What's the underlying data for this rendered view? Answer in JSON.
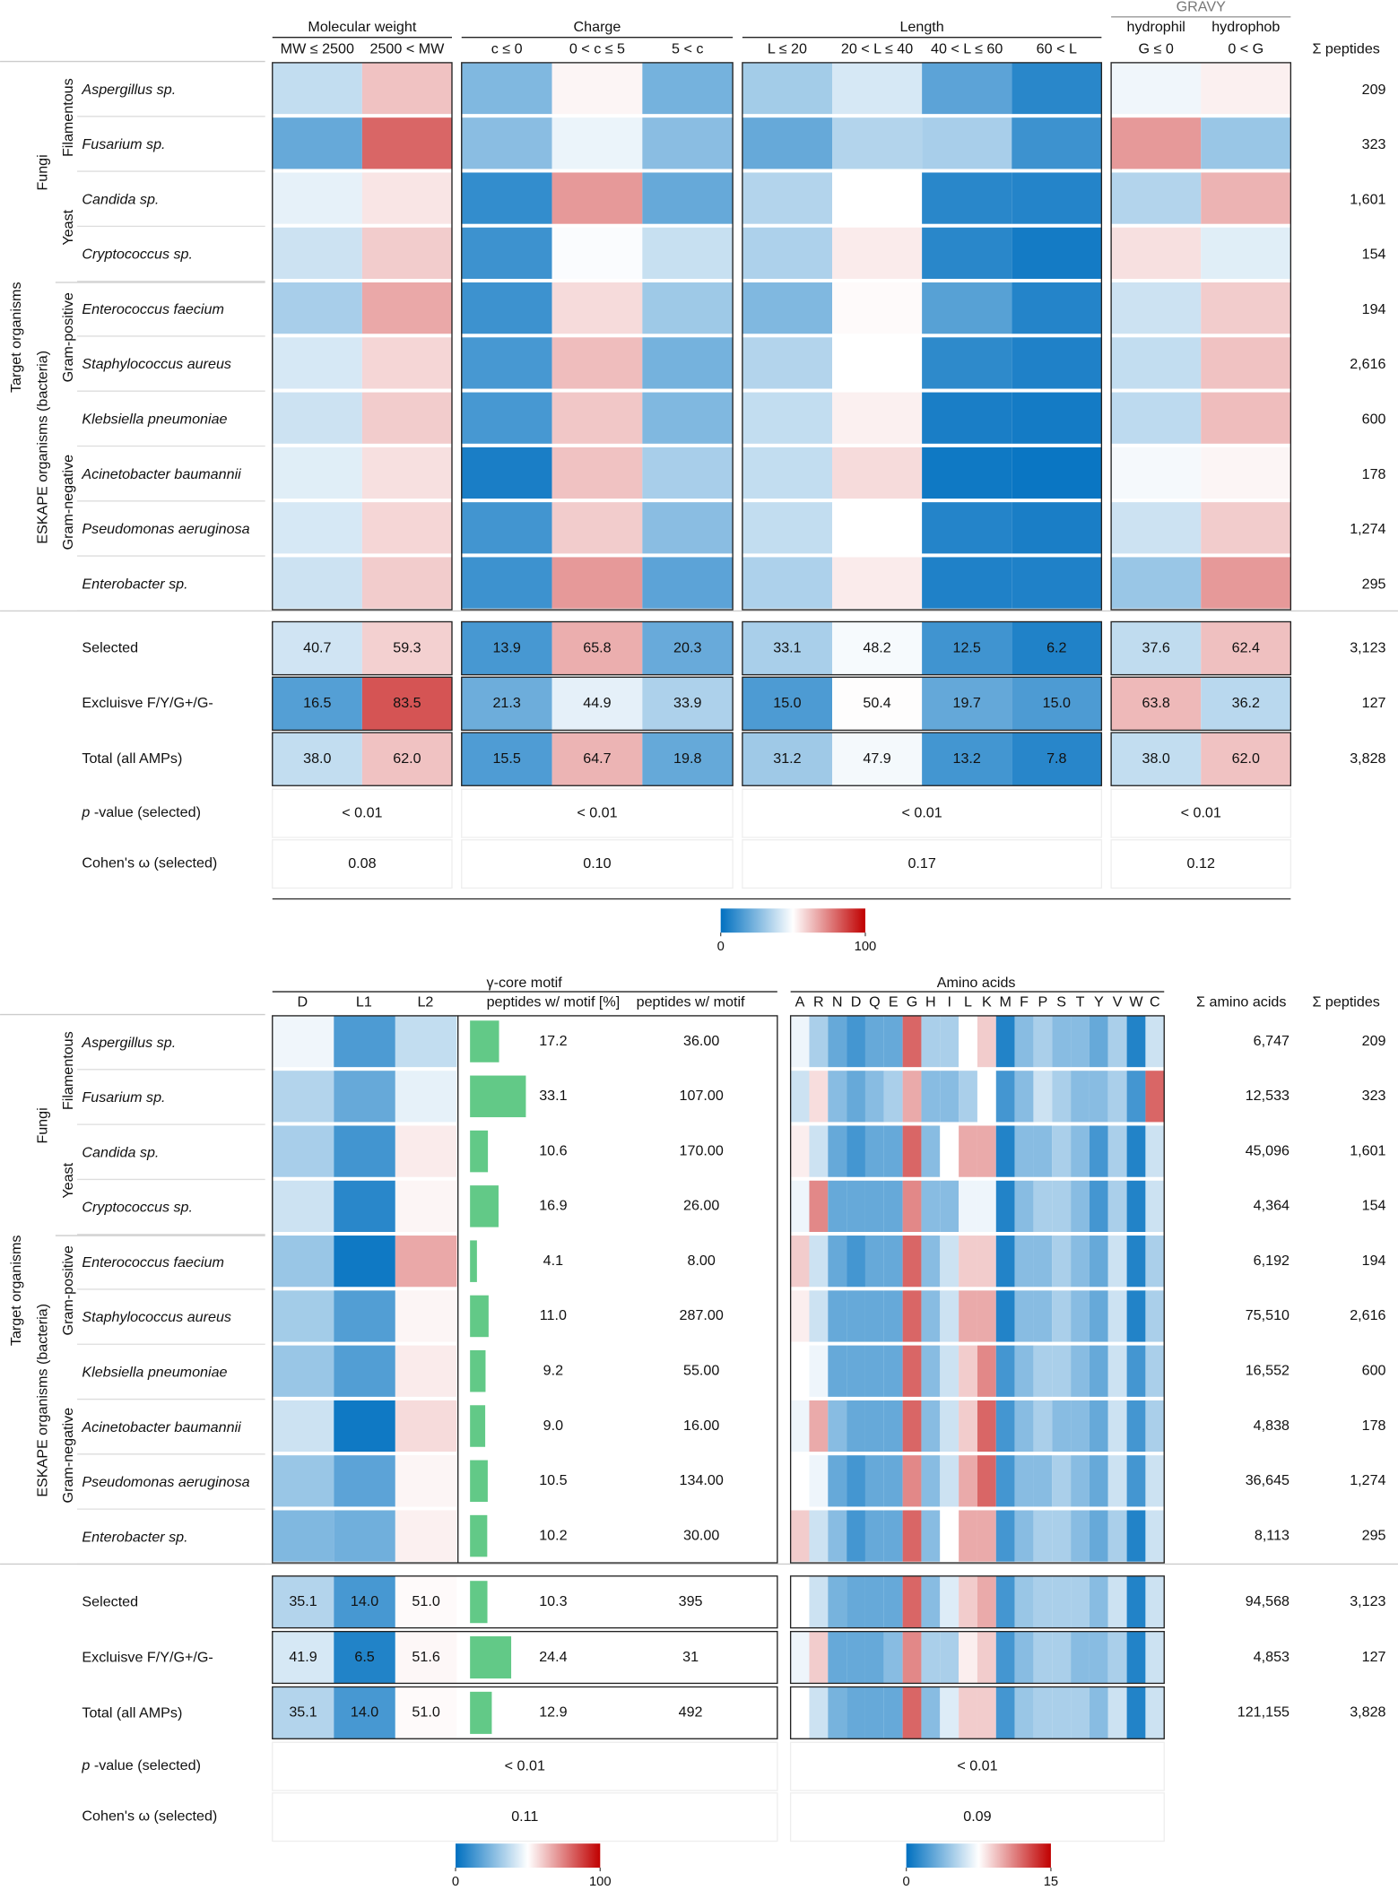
{
  "colors": [
    "#0070c0",
    "#ffffff",
    "#c00000"
  ],
  "bar_color": "#62c987",
  "top": {
    "groups": [
      {
        "name": "Molecular weight",
        "columns": [
          "MW ≤ 2500",
          "2500 < MW"
        ]
      },
      {
        "name": "Charge",
        "columns": [
          "c ≤ 0",
          "0 < c ≤ 5",
          "5 < c"
        ]
      },
      {
        "name": "Length",
        "columns": [
          "L ≤ 20",
          "20 < L ≤ 40",
          "40 < L ≤ 60",
          "60 < L"
        ]
      },
      {
        "name": "GRAVY",
        "subheaders": [
          "hydrophil",
          "hydrophob"
        ],
        "columns": [
          "G ≤ 0",
          "0 < G"
        ]
      }
    ],
    "count_header": "Σ peptides",
    "side": {
      "outer": "Target organisms",
      "kingdoms": [
        "Fungi",
        "ESKAPE organisms (bacteria)"
      ],
      "subgroups": [
        "Filamentous",
        "Yeast",
        "Gram-positive",
        "Gram-negative"
      ]
    },
    "rows": [
      {
        "name": "Aspergillus sp.",
        "values": [
          38,
          62,
          25,
          52,
          23,
          32,
          42,
          18,
          8,
          47,
          53
        ],
        "count": "209"
      },
      {
        "name": "Fusarium sp.",
        "values": [
          20,
          80,
          27,
          46,
          27,
          20,
          35,
          33,
          12,
          70,
          30
        ],
        "count": "323"
      },
      {
        "name": "Candida sp.",
        "values": [
          45,
          55,
          10,
          70,
          20,
          35,
          50,
          8,
          7,
          35,
          65
        ],
        "count": "1,601"
      },
      {
        "name": "Cryptococcus sp.",
        "values": [
          40,
          60,
          12,
          49,
          39,
          34,
          54,
          8,
          4,
          56,
          44
        ],
        "count": "154"
      },
      {
        "name": "Enterococcus faecium",
        "values": [
          33,
          67,
          12,
          57,
          31,
          25,
          51,
          17,
          7,
          40,
          60
        ],
        "count": "194"
      },
      {
        "name": "Staphylococcus aureus",
        "values": [
          42,
          58,
          14,
          63,
          23,
          35,
          50,
          9,
          6,
          38,
          62
        ],
        "count": "2,616"
      },
      {
        "name": "Klebsiella pneumoniae",
        "values": [
          40,
          60,
          14,
          61,
          25,
          38,
          53,
          5,
          4,
          37,
          63
        ],
        "count": "600"
      },
      {
        "name": "Acinetobacter baumannii",
        "values": [
          44,
          56,
          5,
          62,
          33,
          38,
          57,
          3,
          2,
          48,
          52
        ],
        "count": "178"
      },
      {
        "name": "Pseudomonas aeruginosa",
        "values": [
          42,
          58,
          13,
          60,
          27,
          38,
          50,
          7,
          5,
          40,
          60
        ],
        "count": "1,274"
      },
      {
        "name": "Enterobacter sp.",
        "values": [
          40,
          60,
          12,
          70,
          18,
          34,
          54,
          6,
          6,
          30,
          70
        ],
        "count": "295"
      }
    ],
    "summary": [
      {
        "name": "Selected",
        "values": [
          40.7,
          59.3,
          13.9,
          65.8,
          20.3,
          33.1,
          48.2,
          12.5,
          6.2,
          37.6,
          62.4
        ],
        "value_labels": [
          "40.7",
          "59.3",
          "13.9",
          "65.8",
          "20.3",
          "33.1",
          "48.2",
          "12.5",
          "6.2",
          "37.6",
          "62.4"
        ],
        "count": "3,123"
      },
      {
        "name": "Excluisve F/Y/G+/G-",
        "values": [
          16.5,
          83.5,
          21.3,
          44.9,
          33.9,
          15.0,
          50.4,
          19.7,
          15.0,
          63.8,
          36.2
        ],
        "value_labels": [
          "16.5",
          "83.5",
          "21.3",
          "44.9",
          "33.9",
          "15.0",
          "50.4",
          "19.7",
          "15.0",
          "63.8",
          "36.2"
        ],
        "count": "127"
      },
      {
        "name": "Total (all AMPs)",
        "values": [
          38.0,
          62.0,
          15.5,
          64.7,
          19.8,
          31.2,
          47.9,
          13.2,
          7.8,
          38.0,
          62.0
        ],
        "value_labels": [
          "38.0",
          "62.0",
          "15.5",
          "64.7",
          "19.8",
          "31.2",
          "47.9",
          "13.2",
          "7.8",
          "38.0",
          "62.0"
        ],
        "count": "3,828"
      }
    ],
    "stats": [
      {
        "label": [
          "p",
          " -value (selected)"
        ],
        "values": [
          "< 0.01",
          "< 0.01",
          "< 0.01",
          "< 0.01"
        ]
      },
      {
        "label": [
          "Cohen's ω (selected)"
        ],
        "values": [
          "0.08",
          "0.10",
          "0.17",
          "0.12"
        ]
      }
    ],
    "colorbar": {
      "min": 0,
      "max": 100,
      "ticks": [
        0,
        100
      ]
    }
  },
  "bottom": {
    "motif_title": "γ-core motif",
    "motif_columns": [
      "D",
      "L1",
      "L2",
      "peptides w/ motif [%]",
      "peptides w/ motif"
    ],
    "amino_title": "Amino acids",
    "letters": [
      "A",
      "R",
      "N",
      "D",
      "Q",
      "E",
      "G",
      "H",
      "I",
      "L",
      "K",
      "M",
      "F",
      "P",
      "S",
      "T",
      "Y",
      "V",
      "W",
      "C"
    ],
    "aa_sum_header": "Σ amino acids",
    "count_header": "Σ peptides",
    "side": {
      "outer": "Target organisms",
      "kingdoms": [
        "Fungi",
        "ESKAPE organisms (bacteria)"
      ],
      "subgroups": [
        "Filamentous",
        "Yeast",
        "Gram-positive",
        "Gram-negative"
      ]
    },
    "rows": [
      {
        "name": "Aspergillus sp.",
        "dl": [
          47,
          15,
          38
        ],
        "pct": 17.2,
        "pct_label": "17.2",
        "n": "36.00",
        "aa": [
          7,
          5,
          3,
          2,
          3,
          3,
          12,
          5,
          5,
          7.5,
          9,
          1,
          4,
          5,
          4,
          4,
          3,
          5,
          1,
          6
        ],
        "aa_sum": "6,747",
        "count": "209"
      },
      {
        "name": "Fusarium sp.",
        "dl": [
          35,
          20,
          45
        ],
        "pct": 33.1,
        "pct_label": "33.1",
        "n": "107.00",
        "aa": [
          6,
          8.5,
          4,
          3,
          4,
          5,
          10,
          4,
          4,
          5,
          7.5,
          2,
          4,
          6,
          5,
          4,
          4,
          5,
          2,
          12
        ],
        "aa_sum": "12,533",
        "count": "323"
      },
      {
        "name": "Candida sp.",
        "dl": [
          33,
          13,
          54
        ],
        "pct": 10.6,
        "pct_label": "10.6",
        "n": "170.00",
        "aa": [
          8,
          6,
          3,
          2,
          3,
          3,
          12,
          4,
          7.5,
          10,
          10,
          1,
          4,
          4,
          5,
          4,
          2,
          5,
          1,
          6
        ],
        "aa_sum": "45,096",
        "count": "1,601"
      },
      {
        "name": "Cryptococcus sp.",
        "dl": [
          40,
          8,
          52
        ],
        "pct": 16.9,
        "pct_label": "16.9",
        "n": "26.00",
        "aa": [
          7,
          11,
          3,
          3,
          3,
          3,
          11,
          4,
          4,
          7,
          7,
          1,
          4,
          5,
          5,
          4,
          2,
          5,
          1,
          6
        ],
        "aa_sum": "4,364",
        "count": "154"
      },
      {
        "name": "Enterococcus faecium",
        "dl": [
          30,
          3,
          67
        ],
        "pct": 4.1,
        "pct_label": "4.1",
        "n": "8.00",
        "aa": [
          9,
          6,
          3,
          2,
          3,
          3,
          12,
          4,
          6,
          9,
          9,
          1,
          4,
          4,
          5,
          4,
          3,
          6,
          1,
          5
        ],
        "aa_sum": "6,192",
        "count": "194"
      },
      {
        "name": "Staphylococcus aureus",
        "dl": [
          32,
          16,
          52
        ],
        "pct": 11.0,
        "pct_label": "11.0",
        "n": "287.00",
        "aa": [
          8,
          6,
          3,
          3,
          3,
          3,
          12,
          4,
          6,
          10,
          10,
          1,
          4,
          4,
          5,
          4,
          3,
          6,
          1,
          5
        ],
        "aa_sum": "75,510",
        "count": "2,616"
      },
      {
        "name": "Klebsiella pneumoniae",
        "dl": [
          30,
          16,
          54
        ],
        "pct": 9.2,
        "pct_label": "9.2",
        "n": "55.00",
        "aa": [
          7.5,
          7,
          3,
          3,
          3,
          3,
          12,
          4,
          6,
          9,
          11,
          2,
          4,
          5,
          5,
          4,
          3,
          6,
          2,
          5
        ],
        "aa_sum": "16,552",
        "count": "600"
      },
      {
        "name": "Acinetobacter baumannii",
        "dl": [
          40,
          3,
          57
        ],
        "pct": 9.0,
        "pct_label": "9.0",
        "n": "16.00",
        "aa": [
          7,
          10,
          4,
          3,
          3,
          3,
          12,
          4,
          6,
          9,
          12,
          2,
          4,
          5,
          4,
          4,
          3,
          6,
          2,
          5
        ],
        "aa_sum": "4,838",
        "count": "178"
      },
      {
        "name": "Pseudomonas aeruginosa",
        "dl": [
          30,
          18,
          52
        ],
        "pct": 10.5,
        "pct_label": "10.5",
        "n": "134.00",
        "aa": [
          7.5,
          7,
          3,
          2,
          3,
          3,
          11,
          4,
          6,
          10,
          12,
          2,
          4,
          4,
          5,
          4,
          3,
          6,
          2,
          6
        ],
        "aa_sum": "36,645",
        "count": "1,274"
      },
      {
        "name": "Enterobacter sp.",
        "dl": [
          25,
          22,
          53
        ],
        "pct": 10.2,
        "pct_label": "10.2",
        "n": "30.00",
        "aa": [
          9,
          6,
          4,
          2,
          3,
          3,
          12,
          4,
          7.5,
          10,
          10,
          2,
          4,
          5,
          5,
          4,
          3,
          5,
          1,
          6
        ],
        "aa_sum": "8,113",
        "count": "295"
      }
    ],
    "summary": [
      {
        "name": "Selected",
        "dl": [
          35.1,
          14.0,
          51.0
        ],
        "dl_labels": [
          "35.1",
          "14.0",
          "51.0"
        ],
        "pct": 10.3,
        "pct_label": "10.3",
        "n": "395",
        "aa": [
          7.5,
          6,
          3.5,
          3,
          3,
          3,
          12,
          4,
          6.5,
          9,
          10,
          2,
          4.5,
          5,
          5,
          5,
          4,
          6,
          1,
          6
        ],
        "aa_sum": "94,568",
        "count": "3,123"
      },
      {
        "name": "Excluisve F/Y/G+/G-",
        "dl": [
          41.9,
          6.5,
          51.6
        ],
        "dl_labels": [
          "41.9",
          "6.5",
          "51.6"
        ],
        "pct": 24.4,
        "pct_label": "24.4",
        "n": "31",
        "aa": [
          7,
          9,
          3,
          3,
          3,
          4,
          11,
          5,
          5,
          8,
          9,
          2,
          4,
          5,
          5,
          4,
          4,
          5,
          1,
          6
        ],
        "aa_sum": "4,853",
        "count": "127"
      },
      {
        "name": "Total (all AMPs)",
        "dl": [
          35.1,
          14.0,
          51.0
        ],
        "dl_labels": [
          "35.1",
          "14.0",
          "51.0"
        ],
        "pct": 12.9,
        "pct_label": "12.9",
        "n": "492",
        "aa": [
          7.5,
          6,
          3.5,
          3,
          3,
          3,
          12,
          4,
          6.5,
          9,
          9,
          2,
          4.5,
          5,
          5,
          5,
          4,
          6,
          1,
          6
        ],
        "aa_sum": "121,155",
        "count": "3,828"
      }
    ],
    "stats": [
      {
        "label": [
          "p",
          " -value (selected)"
        ],
        "values": [
          "< 0.01",
          "< 0.01"
        ]
      },
      {
        "label": [
          "Cohen's ω (selected)"
        ],
        "values": [
          "0.11",
          "0.09"
        ]
      }
    ],
    "colorbars": [
      {
        "min": 0,
        "max": 100,
        "ticks": [
          0,
          100
        ]
      },
      {
        "min": 0,
        "max": 15,
        "ticks": [
          0,
          15
        ]
      }
    ]
  }
}
